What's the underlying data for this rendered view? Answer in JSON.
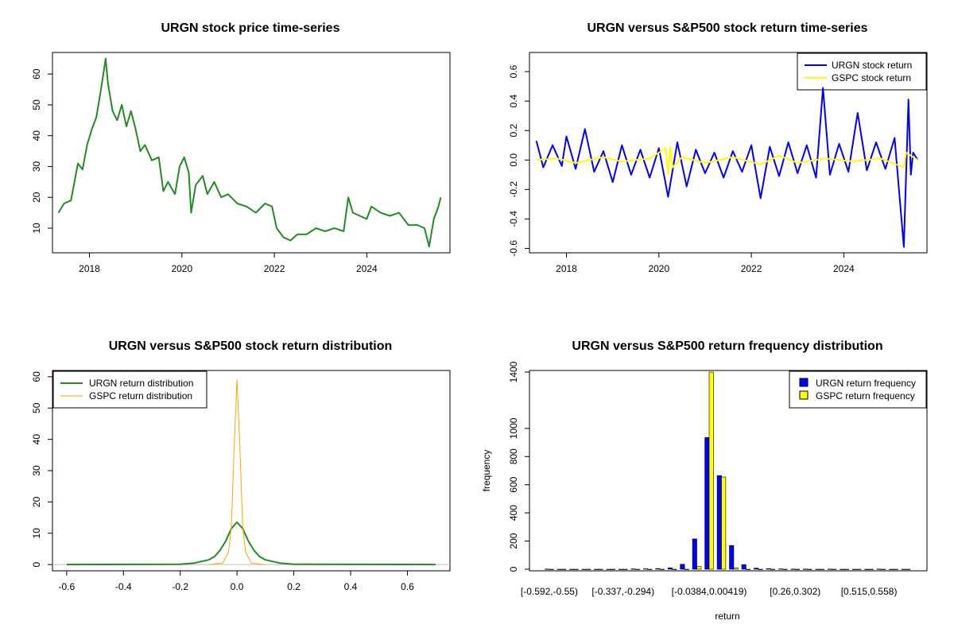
{
  "chart_data": [
    {
      "id": "price",
      "type": "line",
      "title": "URGN stock price time-series",
      "xlabel": "",
      "ylabel": "",
      "xlim": [
        2017.2,
        2025.8
      ],
      "ylim": [
        2,
        67
      ],
      "xticks": [
        2018,
        2020,
        2022,
        2024
      ],
      "xtick_labels": [
        "2018",
        "2020",
        "2022",
        "2024"
      ],
      "yticks": [
        10,
        20,
        30,
        40,
        50,
        60
      ],
      "ytick_labels": [
        "10",
        "20",
        "30",
        "40",
        "50",
        "60"
      ],
      "series": [
        {
          "name": "URGN price",
          "color": "#228B22",
          "x": [
            2017.33,
            2017.45,
            2017.6,
            2017.75,
            2017.85,
            2017.95,
            2018.05,
            2018.15,
            2018.25,
            2018.35,
            2018.4,
            2018.5,
            2018.6,
            2018.7,
            2018.8,
            2018.9,
            2019.0,
            2019.1,
            2019.2,
            2019.35,
            2019.5,
            2019.6,
            2019.7,
            2019.85,
            2019.95,
            2020.05,
            2020.15,
            2020.2,
            2020.3,
            2020.45,
            2020.55,
            2020.7,
            2020.85,
            2021.0,
            2021.2,
            2021.4,
            2021.6,
            2021.8,
            2021.95,
            2022.05,
            2022.2,
            2022.35,
            2022.5,
            2022.7,
            2022.9,
            2023.1,
            2023.3,
            2023.5,
            2023.6,
            2023.7,
            2023.85,
            2024.0,
            2024.1,
            2024.3,
            2024.5,
            2024.7,
            2024.9,
            2025.1,
            2025.25,
            2025.35,
            2025.45,
            2025.55,
            2025.6
          ],
          "y": [
            15,
            18,
            19,
            31,
            29,
            37,
            42,
            46,
            55,
            65,
            57,
            48,
            45,
            50,
            43,
            48,
            42,
            35,
            37,
            32,
            33,
            22,
            25,
            21,
            30,
            33,
            28,
            15,
            24,
            27,
            21,
            25,
            20,
            21,
            18,
            17,
            15,
            18,
            17,
            10,
            7,
            6,
            8,
            8,
            10,
            9,
            10,
            9,
            20,
            15,
            14,
            13,
            17,
            15,
            14,
            15,
            11,
            11,
            10,
            4,
            13,
            17,
            20
          ]
        }
      ]
    },
    {
      "id": "returns",
      "type": "line",
      "title": "URGN versus S&P500 stock return time-series",
      "xlabel": "",
      "ylabel": "",
      "xlim": [
        2017.2,
        2025.8
      ],
      "ylim": [
        -0.63,
        0.73
      ],
      "xticks": [
        2018,
        2020,
        2022,
        2024
      ],
      "xtick_labels": [
        "2018",
        "2020",
        "2022",
        "2024"
      ],
      "yticks": [
        -0.6,
        -0.4,
        -0.2,
        0.0,
        0.2,
        0.4,
        0.6
      ],
      "ytick_labels": [
        "-0.6",
        "-0.4",
        "-0.2",
        "0.0",
        "0.2",
        "0.4",
        "0.6"
      ],
      "legend": {
        "position": "top-right",
        "items": [
          "URGN stock return",
          "GSPC stock return"
        ]
      },
      "series": [
        {
          "name": "URGN stock return",
          "color": "#0000FF",
          "x": [
            2017.35,
            2017.5,
            2017.7,
            2017.9,
            2018.0,
            2018.2,
            2018.4,
            2018.6,
            2018.8,
            2019.0,
            2019.2,
            2019.4,
            2019.6,
            2019.8,
            2020.0,
            2020.2,
            2020.4,
            2020.6,
            2020.8,
            2021.0,
            2021.2,
            2021.4,
            2021.6,
            2021.8,
            2022.0,
            2022.2,
            2022.4,
            2022.6,
            2022.8,
            2023.0,
            2023.2,
            2023.4,
            2023.55,
            2023.7,
            2023.9,
            2024.1,
            2024.3,
            2024.5,
            2024.7,
            2024.9,
            2025.1,
            2025.3,
            2025.4,
            2025.45,
            2025.5,
            2025.6
          ],
          "y": [
            0.13,
            -0.05,
            0.1,
            -0.04,
            0.16,
            -0.06,
            0.21,
            -0.08,
            0.06,
            -0.15,
            0.1,
            -0.1,
            0.07,
            -0.12,
            0.08,
            -0.25,
            0.12,
            -0.18,
            0.07,
            -0.09,
            0.05,
            -0.12,
            0.06,
            -0.08,
            0.1,
            -0.26,
            0.09,
            -0.11,
            0.12,
            -0.09,
            0.1,
            -0.12,
            0.49,
            -0.1,
            0.11,
            -0.08,
            0.32,
            -0.07,
            0.12,
            -0.06,
            0.15,
            -0.59,
            0.41,
            -0.1,
            0.05,
            0.0
          ]
        },
        {
          "name": "GSPC stock return",
          "color": "#FFFF00",
          "x": [
            2017.35,
            2017.8,
            2018.2,
            2018.8,
            2019.2,
            2019.8,
            2020.15,
            2020.2,
            2020.25,
            2020.3,
            2020.5,
            2021.0,
            2021.6,
            2022.2,
            2022.6,
            2023.0,
            2023.6,
            2024.2,
            2024.8,
            2025.3,
            2025.35,
            2025.6
          ],
          "y": [
            0.0,
            0.01,
            -0.02,
            0.02,
            -0.01,
            0.01,
            0.08,
            -0.1,
            0.09,
            -0.05,
            0.02,
            -0.02,
            0.02,
            -0.03,
            0.03,
            -0.02,
            0.01,
            -0.01,
            0.01,
            -0.05,
            0.05,
            0.0
          ]
        }
      ]
    },
    {
      "id": "density",
      "type": "line",
      "title": "URGN versus S&P500 stock return distribution",
      "xlabel": "",
      "ylabel": "",
      "xlim": [
        -0.65,
        0.75
      ],
      "ylim": [
        -2,
        62
      ],
      "xticks": [
        -0.6,
        -0.4,
        -0.2,
        0.0,
        0.2,
        0.4,
        0.6
      ],
      "xtick_labels": [
        "-0.6",
        "-0.4",
        "-0.2",
        "0.0",
        "0.2",
        "0.4",
        "0.6"
      ],
      "yticks": [
        0,
        10,
        20,
        30,
        40,
        50,
        60
      ],
      "ytick_labels": [
        "0",
        "10",
        "20",
        "30",
        "40",
        "50",
        "60"
      ],
      "legend": {
        "position": "top-left",
        "items": [
          "URGN return distribution",
          "GSPC return distribution"
        ]
      },
      "series": [
        {
          "name": "URGN return distribution",
          "color": "#228B22",
          "x": [
            -0.6,
            -0.2,
            -0.15,
            -0.1,
            -0.08,
            -0.06,
            -0.04,
            -0.02,
            0.0,
            0.02,
            0.04,
            0.06,
            0.08,
            0.1,
            0.15,
            0.2,
            0.7
          ],
          "y": [
            0,
            0.1,
            0.5,
            1.5,
            2.5,
            4.5,
            7.5,
            11.5,
            13.5,
            11.5,
            7.5,
            4.5,
            2.5,
            1.5,
            0.5,
            0.1,
            0
          ]
        },
        {
          "name": "GSPC return distribution",
          "color": "#FFA500",
          "x": [
            -0.1,
            -0.05,
            -0.03,
            -0.02,
            -0.01,
            0.0,
            0.01,
            0.02,
            0.03,
            0.05,
            0.1
          ],
          "y": [
            0,
            0.5,
            4,
            12,
            38,
            59,
            38,
            12,
            4,
            0.5,
            0
          ]
        }
      ]
    },
    {
      "id": "frequency",
      "type": "bar",
      "title": "URGN versus S&P500 return frequency distribution",
      "xlabel": "return",
      "ylabel": "frequency",
      "ylim": [
        0,
        1400
      ],
      "yticks": [
        0,
        200,
        400,
        600,
        800,
        1000,
        1400
      ],
      "ytick_labels": [
        "0",
        "200",
        "400",
        "600",
        "800",
        "1000",
        "1400"
      ],
      "xtick_labels": [
        "[-0.592,-0.55)",
        "[-0.337,-0.294)",
        "[-0.0384,0.00419)",
        "[0.26,0.302)",
        "[0.515,0.558)"
      ],
      "xtick_bins": [
        0,
        6,
        13,
        20,
        26
      ],
      "legend": {
        "position": "top-right",
        "items": [
          "URGN return frequency",
          "GSPC return frequency"
        ]
      },
      "series": [
        {
          "name": "URGN return frequency",
          "color": "#0000FF",
          "values": [
            1,
            0,
            0,
            0,
            0,
            0,
            0,
            2,
            3,
            5,
            10,
            35,
            215,
            935,
            665,
            168,
            33,
            8,
            4,
            2,
            1,
            1,
            0,
            1,
            0,
            0,
            0,
            1,
            0,
            0
          ]
        },
        {
          "name": "GSPC return frequency",
          "color": "#FFFF00",
          "values": [
            0,
            0,
            0,
            0,
            0,
            0,
            0,
            0,
            0,
            0,
            0,
            0,
            20,
            1400,
            655,
            10,
            0,
            0,
            0,
            0,
            0,
            0,
            0,
            0,
            0,
            0,
            0,
            0,
            0,
            0
          ]
        }
      ]
    }
  ]
}
